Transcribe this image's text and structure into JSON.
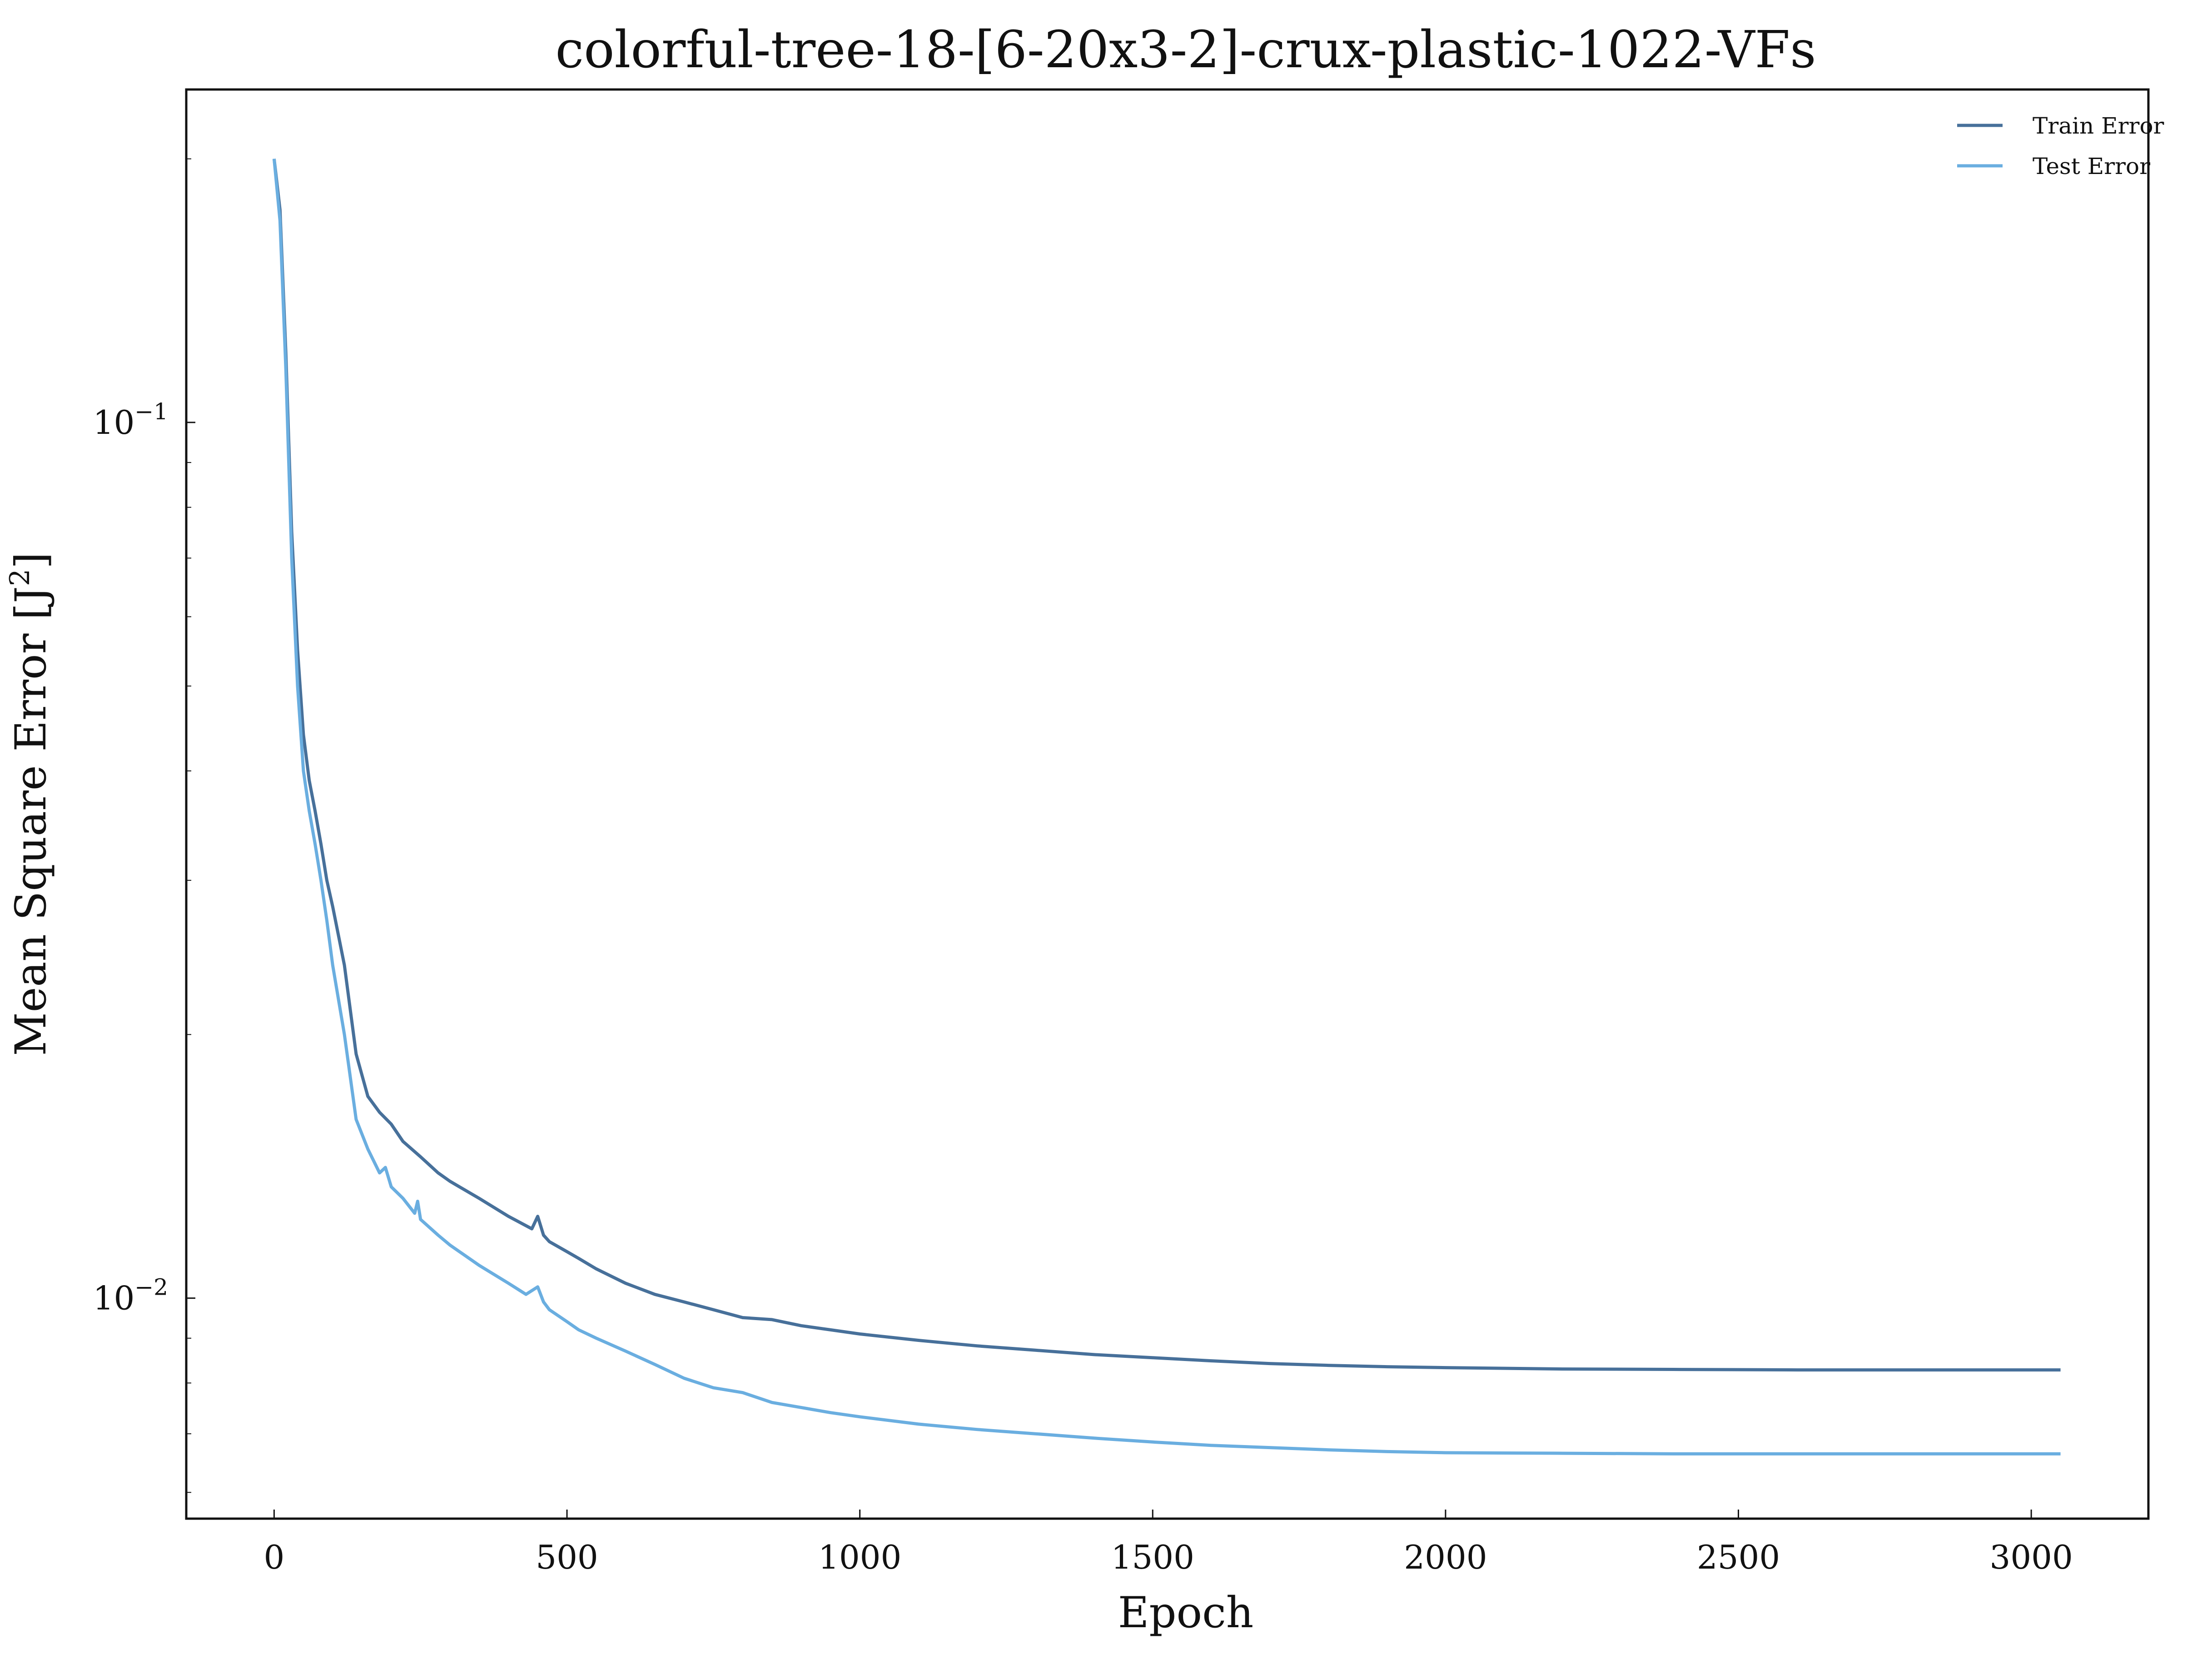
{
  "colors": {
    "train_line": "#47709a",
    "test_line": "#6aaee0",
    "axis": "#111111",
    "background": "#ffffff"
  },
  "chart_data": {
    "type": "line",
    "title": "colorful-tree-18-[6-20x3-2]-crux-plastic-1022-VFs",
    "xlabel": "Epoch",
    "ylabel": "Mean Square Error [J²]",
    "ylabel_main": "Mean Square Error [J",
    "ylabel_sup": "2",
    "ylabel_close": "]",
    "xscale": "linear",
    "yscale": "log",
    "xlim": [
      -150,
      3200
    ],
    "ylim": [
      0.0056,
      0.24
    ],
    "grid": false,
    "legend_position": "top-right",
    "xticks": [
      {
        "value": 0,
        "label": "0"
      },
      {
        "value": 500,
        "label": "500"
      },
      {
        "value": 1000,
        "label": "1000"
      },
      {
        "value": 1500,
        "label": "1500"
      },
      {
        "value": 2000,
        "label": "2000"
      },
      {
        "value": 2500,
        "label": "2500"
      },
      {
        "value": 3000,
        "label": "3000"
      }
    ],
    "yticks": [
      {
        "value": 0.1,
        "base": "10",
        "exp": "−1"
      },
      {
        "value": 0.01,
        "base": "10",
        "exp": "−2"
      }
    ],
    "series": [
      {
        "name": "Train Error",
        "x": [
          0,
          10,
          20,
          30,
          40,
          50,
          60,
          70,
          80,
          90,
          100,
          120,
          140,
          160,
          180,
          200,
          220,
          250,
          280,
          300,
          350,
          400,
          440,
          450,
          460,
          470,
          500,
          520,
          550,
          600,
          650,
          700,
          750,
          800,
          850,
          900,
          950,
          1000,
          1100,
          1200,
          1300,
          1400,
          1500,
          1600,
          1700,
          1800,
          1900,
          2000,
          2200,
          2400,
          2600,
          2800,
          3000,
          3050
        ],
        "y": [
          0.2,
          0.175,
          0.12,
          0.075,
          0.055,
          0.044,
          0.039,
          0.036,
          0.033,
          0.03,
          0.028,
          0.024,
          0.019,
          0.017,
          0.0163,
          0.0158,
          0.0151,
          0.0145,
          0.0139,
          0.0136,
          0.013,
          0.0124,
          0.012,
          0.0124,
          0.0118,
          0.0116,
          0.0113,
          0.0111,
          0.0108,
          0.0104,
          0.0101,
          0.0099,
          0.0097,
          0.0095,
          0.00945,
          0.0093,
          0.0092,
          0.0091,
          0.00895,
          0.00882,
          0.00872,
          0.00862,
          0.00855,
          0.00848,
          0.00842,
          0.00838,
          0.00835,
          0.00833,
          0.0083,
          0.00829,
          0.00828,
          0.00828,
          0.00828,
          0.00828
        ]
      },
      {
        "name": "Test Error",
        "x": [
          0,
          10,
          20,
          30,
          40,
          50,
          60,
          70,
          80,
          90,
          100,
          120,
          140,
          160,
          180,
          190,
          200,
          220,
          240,
          245,
          250,
          280,
          300,
          350,
          400,
          430,
          450,
          460,
          470,
          500,
          520,
          550,
          600,
          650,
          700,
          750,
          800,
          850,
          900,
          950,
          1000,
          1100,
          1200,
          1300,
          1400,
          1500,
          1600,
          1700,
          1800,
          1900,
          2000,
          2200,
          2400,
          2600,
          2800,
          3000,
          3050
        ],
        "y": [
          0.2,
          0.17,
          0.115,
          0.07,
          0.05,
          0.04,
          0.036,
          0.033,
          0.03,
          0.027,
          0.024,
          0.02,
          0.016,
          0.0148,
          0.0139,
          0.0141,
          0.0134,
          0.013,
          0.0125,
          0.0129,
          0.0123,
          0.0118,
          0.0115,
          0.0109,
          0.0104,
          0.0101,
          0.0103,
          0.0099,
          0.0097,
          0.0094,
          0.0092,
          0.009,
          0.0087,
          0.0084,
          0.0081,
          0.0079,
          0.0078,
          0.0076,
          0.0075,
          0.0074,
          0.00732,
          0.00718,
          0.00708,
          0.007,
          0.00692,
          0.00685,
          0.00679,
          0.00675,
          0.00671,
          0.00668,
          0.00666,
          0.00665,
          0.00664,
          0.00664,
          0.00664,
          0.00664,
          0.00664
        ]
      }
    ]
  }
}
